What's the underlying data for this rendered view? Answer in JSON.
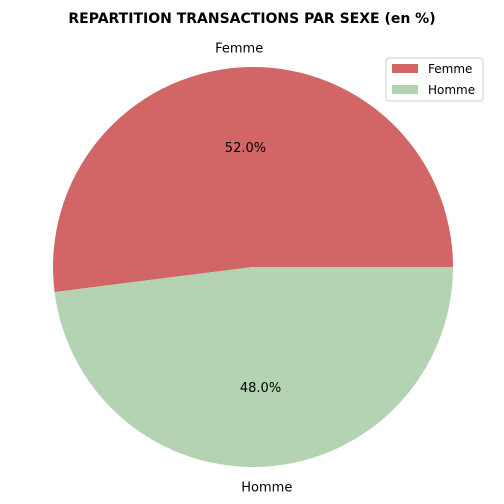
{
  "chart_data": {
    "type": "pie",
    "title": "REPARTITION TRANSACTIONS PAR SEXE (en %)",
    "categories": [
      "Femme",
      "Homme"
    ],
    "values": [
      52.0,
      48.0
    ],
    "percent_labels": [
      "52.0%",
      "48.0%"
    ],
    "colors": [
      "#d26565",
      "#b4d3b2"
    ],
    "legend_position": "top-right",
    "start_angle": 0,
    "direction": "counterclockwise"
  }
}
